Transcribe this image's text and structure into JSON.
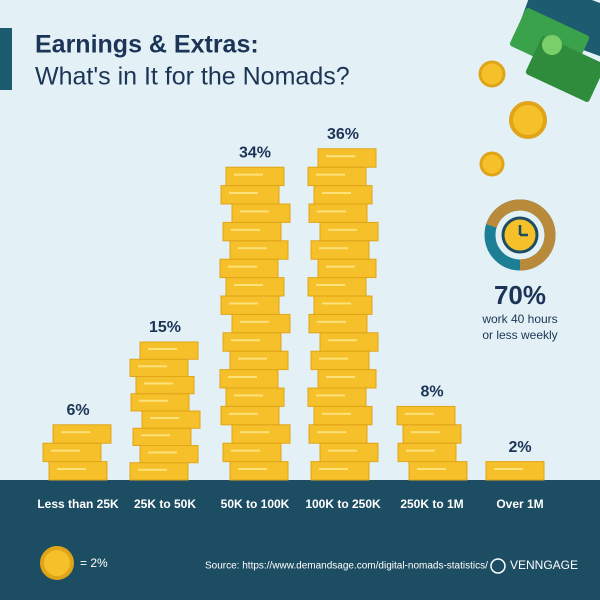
{
  "chart_data": {
    "type": "bar",
    "title": "Earnings & Extras:",
    "subtitle": "What's in It for the Nomads?",
    "categories": [
      "Less than 25K",
      "25K to 50K",
      "50K to 100K",
      "100K to 250K",
      "250K to 1M",
      "Over 1M"
    ],
    "values": [
      6,
      15,
      34,
      36,
      8,
      2
    ],
    "value_labels": [
      "6%",
      "15%",
      "34%",
      "36%",
      "8%",
      "2%"
    ],
    "color": "#f5c02a",
    "legend": "= 2%",
    "callout": {
      "value": 70,
      "value_label": "70%",
      "text": [
        "work 40 hours",
        "or less weekly"
      ]
    },
    "source": "Source: https://www.demandsage.com/digital-nomads-statistics/",
    "brand": "VENNGAGE"
  }
}
